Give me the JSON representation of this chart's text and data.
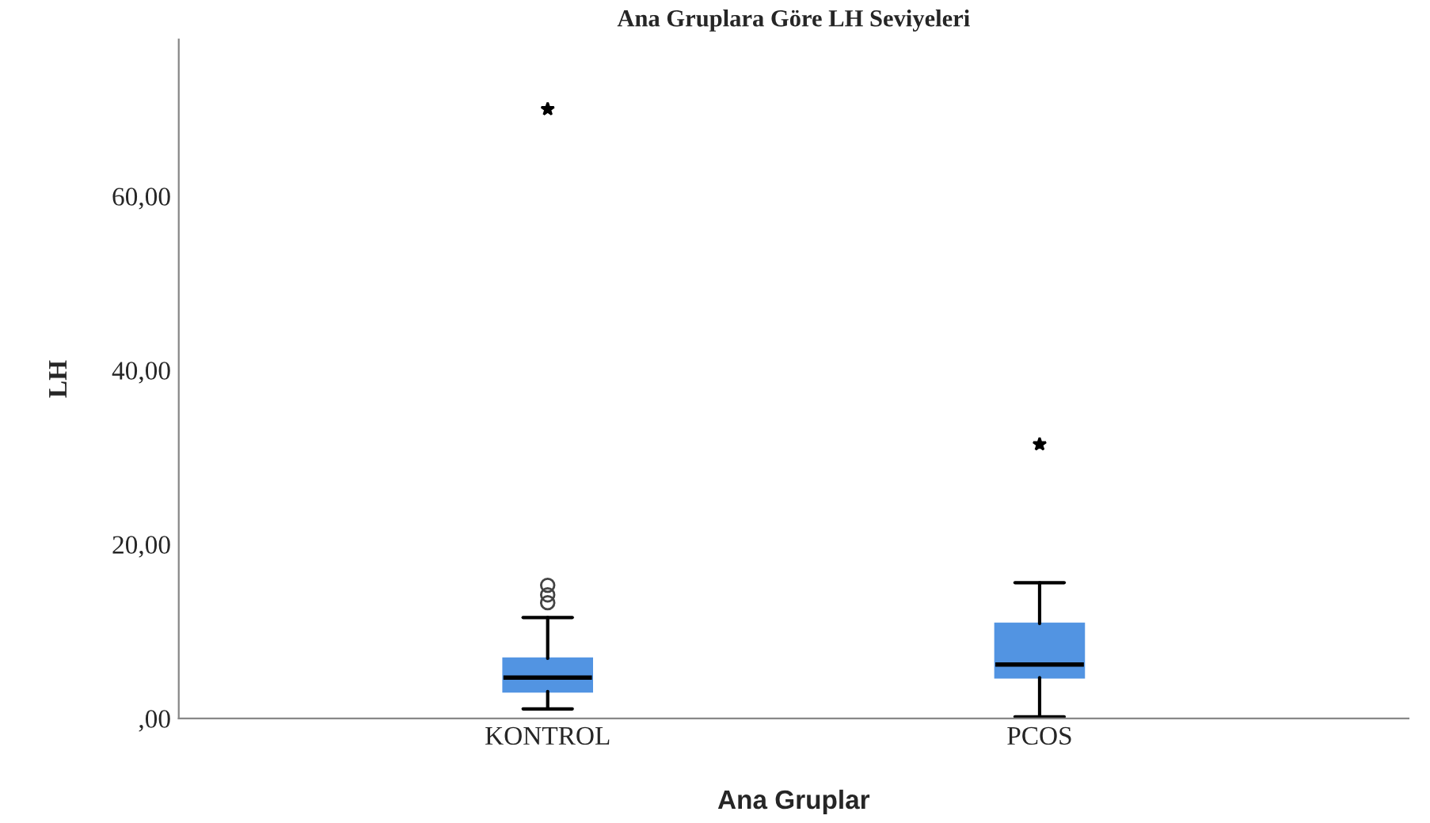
{
  "chart_data": {
    "type": "box",
    "title": "Ana Gruplara Göre LH Seviyeleri",
    "xlabel": "Ana Gruplar",
    "ylabel": "LH",
    "categories": [
      "KONTROL",
      "PCOS"
    ],
    "boxes": [
      {
        "low": 1.1,
        "q1": 3.1,
        "median": 4.7,
        "q3": 6.9,
        "high": 11.6,
        "outliers": [
          13.3,
          14.2,
          15.3,
          70
        ]
      },
      {
        "low": 0.2,
        "q1": 4.7,
        "median": 6.2,
        "q3": 10.9,
        "high": 15.6,
        "outliers": [
          31.5
        ]
      }
    ],
    "color": "#5294e2",
    "ylim": [
      0,
      78
    ],
    "yticks": [
      {
        "value": 0,
        "label": ",00"
      },
      {
        "value": 20,
        "label": "20,00"
      },
      {
        "value": 40,
        "label": "40,00"
      },
      {
        "value": 60,
        "label": "60,00"
      }
    ],
    "grid": false,
    "legend": false
  }
}
